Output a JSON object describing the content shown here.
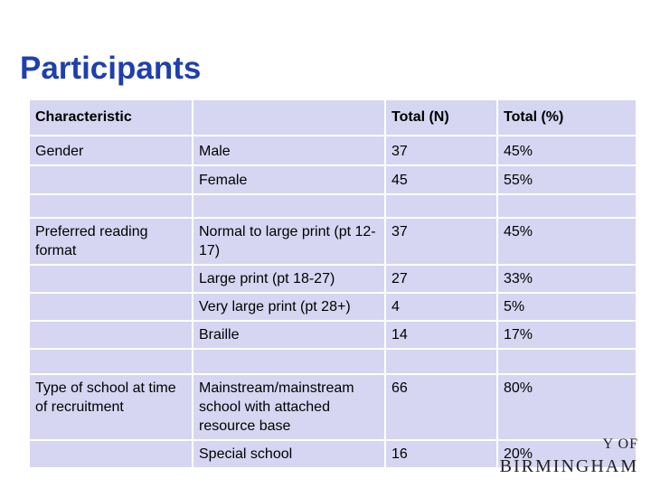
{
  "slide": {
    "title": "Participants"
  },
  "table": {
    "headers": [
      "Characteristic",
      "",
      "Total (N)",
      "Total (%)"
    ],
    "rows": [
      [
        "Gender",
        "Male",
        "37",
        "45%"
      ],
      [
        "",
        "Female",
        "45",
        "55%"
      ],
      [
        "",
        "",
        "",
        ""
      ],
      [
        "Preferred reading format",
        "Normal to large print (pt 12-17)",
        "37",
        "45%"
      ],
      [
        "",
        "Large print (pt 18-27)",
        "27",
        "33%"
      ],
      [
        "",
        "Very large print (pt 28+)",
        "4",
        "5%"
      ],
      [
        "",
        "Braille",
        "14",
        "17%"
      ],
      [
        "",
        "",
        "",
        ""
      ],
      [
        "Type of school at time of recruitment",
        "Mainstream/mainstream school with attached resource base",
        "66",
        "80%"
      ],
      [
        "",
        "Special school",
        "16",
        "20%"
      ]
    ]
  },
  "logo": {
    "line1": "Y OF",
    "line2": "BIRMINGHAM"
  }
}
